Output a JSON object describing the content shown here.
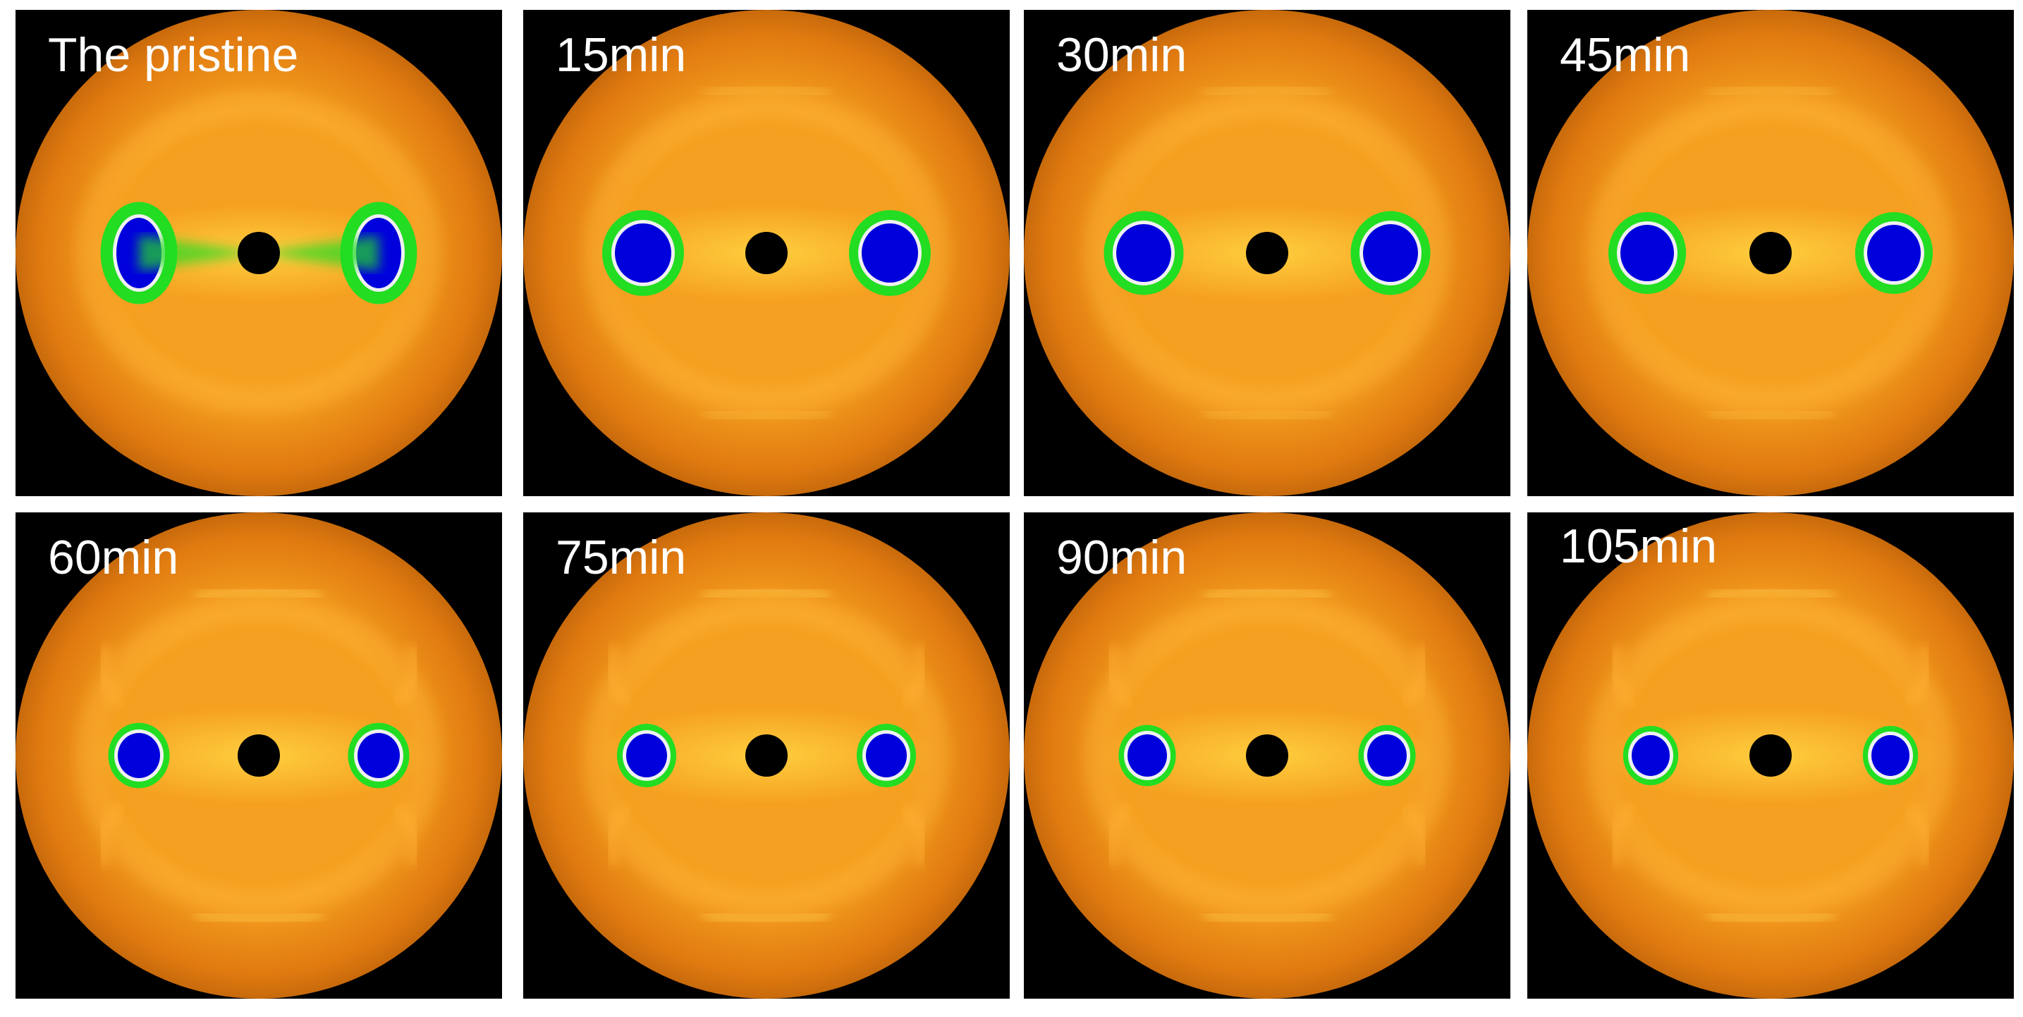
{
  "panels": [
    {
      "label": "The pristine",
      "stage": 0
    },
    {
      "label": "15min",
      "stage": 1
    },
    {
      "label": "30min",
      "stage": 2
    },
    {
      "label": "45min",
      "stage": 3
    },
    {
      "label": "60min",
      "stage": 4
    },
    {
      "label": "75min",
      "stage": 5
    },
    {
      "label": "90min",
      "stage": 6
    },
    {
      "label": "105min",
      "stage": 7
    }
  ],
  "colors": {
    "background": "#000000",
    "halo_outer": "#e07a10",
    "halo_inner": "#f5a020",
    "lobe_green": "#22dd22",
    "lobe_white": "#f0f0f0",
    "lobe_core": "#0000dd",
    "beamstop": "#000000"
  }
}
